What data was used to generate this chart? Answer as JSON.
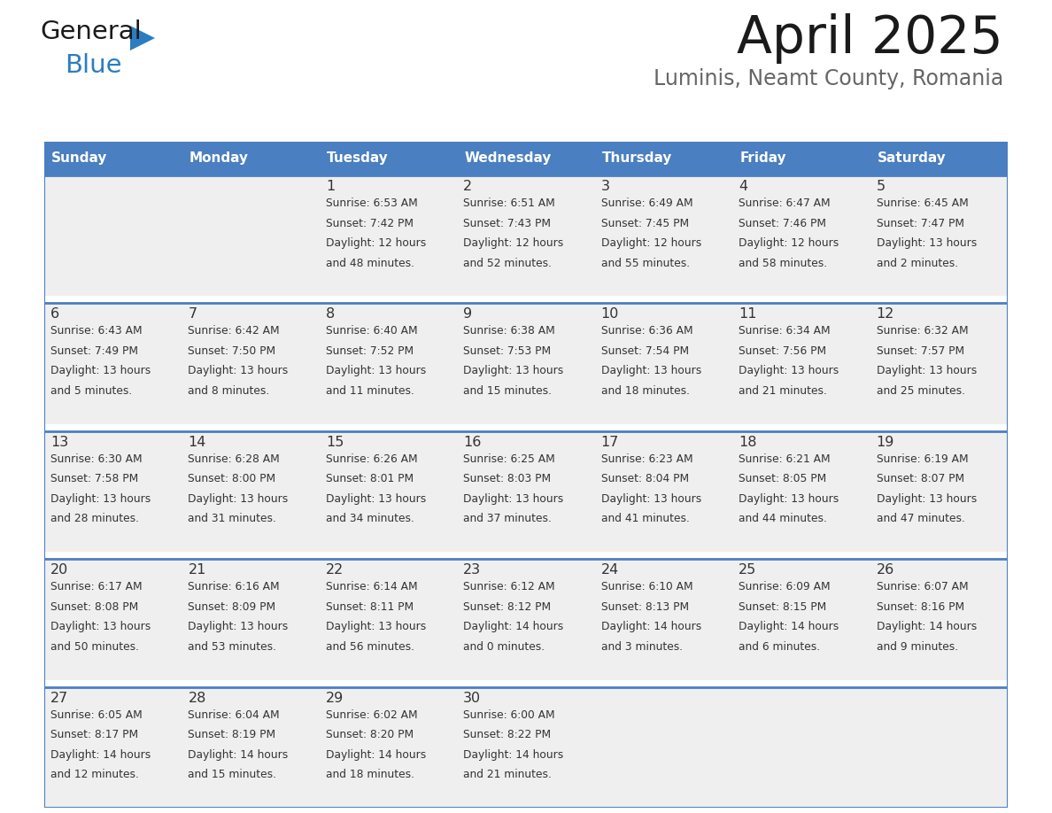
{
  "title": "April 2025",
  "subtitle": "Luminis, Neamt County, Romania",
  "header_bg": "#4a7fc1",
  "header_text_color": "#ffffff",
  "cell_bg": "#efefef",
  "cell_bg_empty": "#efefef",
  "row_gap_bg": "#ffffff",
  "day_headers": [
    "Sunday",
    "Monday",
    "Tuesday",
    "Wednesday",
    "Thursday",
    "Friday",
    "Saturday"
  ],
  "weeks": [
    [
      {
        "day": "",
        "sunrise": "",
        "sunset": "",
        "daylight": ""
      },
      {
        "day": "",
        "sunrise": "",
        "sunset": "",
        "daylight": ""
      },
      {
        "day": "1",
        "sunrise": "Sunrise: 6:53 AM",
        "sunset": "Sunset: 7:42 PM",
        "daylight": "Daylight: 12 hours\nand 48 minutes."
      },
      {
        "day": "2",
        "sunrise": "Sunrise: 6:51 AM",
        "sunset": "Sunset: 7:43 PM",
        "daylight": "Daylight: 12 hours\nand 52 minutes."
      },
      {
        "day": "3",
        "sunrise": "Sunrise: 6:49 AM",
        "sunset": "Sunset: 7:45 PM",
        "daylight": "Daylight: 12 hours\nand 55 minutes."
      },
      {
        "day": "4",
        "sunrise": "Sunrise: 6:47 AM",
        "sunset": "Sunset: 7:46 PM",
        "daylight": "Daylight: 12 hours\nand 58 minutes."
      },
      {
        "day": "5",
        "sunrise": "Sunrise: 6:45 AM",
        "sunset": "Sunset: 7:47 PM",
        "daylight": "Daylight: 13 hours\nand 2 minutes."
      }
    ],
    [
      {
        "day": "6",
        "sunrise": "Sunrise: 6:43 AM",
        "sunset": "Sunset: 7:49 PM",
        "daylight": "Daylight: 13 hours\nand 5 minutes."
      },
      {
        "day": "7",
        "sunrise": "Sunrise: 6:42 AM",
        "sunset": "Sunset: 7:50 PM",
        "daylight": "Daylight: 13 hours\nand 8 minutes."
      },
      {
        "day": "8",
        "sunrise": "Sunrise: 6:40 AM",
        "sunset": "Sunset: 7:52 PM",
        "daylight": "Daylight: 13 hours\nand 11 minutes."
      },
      {
        "day": "9",
        "sunrise": "Sunrise: 6:38 AM",
        "sunset": "Sunset: 7:53 PM",
        "daylight": "Daylight: 13 hours\nand 15 minutes."
      },
      {
        "day": "10",
        "sunrise": "Sunrise: 6:36 AM",
        "sunset": "Sunset: 7:54 PM",
        "daylight": "Daylight: 13 hours\nand 18 minutes."
      },
      {
        "day": "11",
        "sunrise": "Sunrise: 6:34 AM",
        "sunset": "Sunset: 7:56 PM",
        "daylight": "Daylight: 13 hours\nand 21 minutes."
      },
      {
        "day": "12",
        "sunrise": "Sunrise: 6:32 AM",
        "sunset": "Sunset: 7:57 PM",
        "daylight": "Daylight: 13 hours\nand 25 minutes."
      }
    ],
    [
      {
        "day": "13",
        "sunrise": "Sunrise: 6:30 AM",
        "sunset": "Sunset: 7:58 PM",
        "daylight": "Daylight: 13 hours\nand 28 minutes."
      },
      {
        "day": "14",
        "sunrise": "Sunrise: 6:28 AM",
        "sunset": "Sunset: 8:00 PM",
        "daylight": "Daylight: 13 hours\nand 31 minutes."
      },
      {
        "day": "15",
        "sunrise": "Sunrise: 6:26 AM",
        "sunset": "Sunset: 8:01 PM",
        "daylight": "Daylight: 13 hours\nand 34 minutes."
      },
      {
        "day": "16",
        "sunrise": "Sunrise: 6:25 AM",
        "sunset": "Sunset: 8:03 PM",
        "daylight": "Daylight: 13 hours\nand 37 minutes."
      },
      {
        "day": "17",
        "sunrise": "Sunrise: 6:23 AM",
        "sunset": "Sunset: 8:04 PM",
        "daylight": "Daylight: 13 hours\nand 41 minutes."
      },
      {
        "day": "18",
        "sunrise": "Sunrise: 6:21 AM",
        "sunset": "Sunset: 8:05 PM",
        "daylight": "Daylight: 13 hours\nand 44 minutes."
      },
      {
        "day": "19",
        "sunrise": "Sunrise: 6:19 AM",
        "sunset": "Sunset: 8:07 PM",
        "daylight": "Daylight: 13 hours\nand 47 minutes."
      }
    ],
    [
      {
        "day": "20",
        "sunrise": "Sunrise: 6:17 AM",
        "sunset": "Sunset: 8:08 PM",
        "daylight": "Daylight: 13 hours\nand 50 minutes."
      },
      {
        "day": "21",
        "sunrise": "Sunrise: 6:16 AM",
        "sunset": "Sunset: 8:09 PM",
        "daylight": "Daylight: 13 hours\nand 53 minutes."
      },
      {
        "day": "22",
        "sunrise": "Sunrise: 6:14 AM",
        "sunset": "Sunset: 8:11 PM",
        "daylight": "Daylight: 13 hours\nand 56 minutes."
      },
      {
        "day": "23",
        "sunrise": "Sunrise: 6:12 AM",
        "sunset": "Sunset: 8:12 PM",
        "daylight": "Daylight: 14 hours\nand 0 minutes."
      },
      {
        "day": "24",
        "sunrise": "Sunrise: 6:10 AM",
        "sunset": "Sunset: 8:13 PM",
        "daylight": "Daylight: 14 hours\nand 3 minutes."
      },
      {
        "day": "25",
        "sunrise": "Sunrise: 6:09 AM",
        "sunset": "Sunset: 8:15 PM",
        "daylight": "Daylight: 14 hours\nand 6 minutes."
      },
      {
        "day": "26",
        "sunrise": "Sunrise: 6:07 AM",
        "sunset": "Sunset: 8:16 PM",
        "daylight": "Daylight: 14 hours\nand 9 minutes."
      }
    ],
    [
      {
        "day": "27",
        "sunrise": "Sunrise: 6:05 AM",
        "sunset": "Sunset: 8:17 PM",
        "daylight": "Daylight: 14 hours\nand 12 minutes."
      },
      {
        "day": "28",
        "sunrise": "Sunrise: 6:04 AM",
        "sunset": "Sunset: 8:19 PM",
        "daylight": "Daylight: 14 hours\nand 15 minutes."
      },
      {
        "day": "29",
        "sunrise": "Sunrise: 6:02 AM",
        "sunset": "Sunset: 8:20 PM",
        "daylight": "Daylight: 14 hours\nand 18 minutes."
      },
      {
        "day": "30",
        "sunrise": "Sunrise: 6:00 AM",
        "sunset": "Sunset: 8:22 PM",
        "daylight": "Daylight: 14 hours\nand 21 minutes."
      },
      {
        "day": "",
        "sunrise": "",
        "sunset": "",
        "daylight": ""
      },
      {
        "day": "",
        "sunrise": "",
        "sunset": "",
        "daylight": ""
      },
      {
        "day": "",
        "sunrise": "",
        "sunset": "",
        "daylight": ""
      }
    ]
  ],
  "logo_color_general": "#1a1a1a",
  "logo_color_blue": "#2b7dc0",
  "logo_triangle_color": "#2b7dc0",
  "title_color": "#1a1a1a",
  "subtitle_color": "#666666",
  "border_color": "#4a7fc1",
  "cell_number_color": "#333333",
  "cell_text_color": "#333333",
  "separator_color": "#4a7fc1"
}
